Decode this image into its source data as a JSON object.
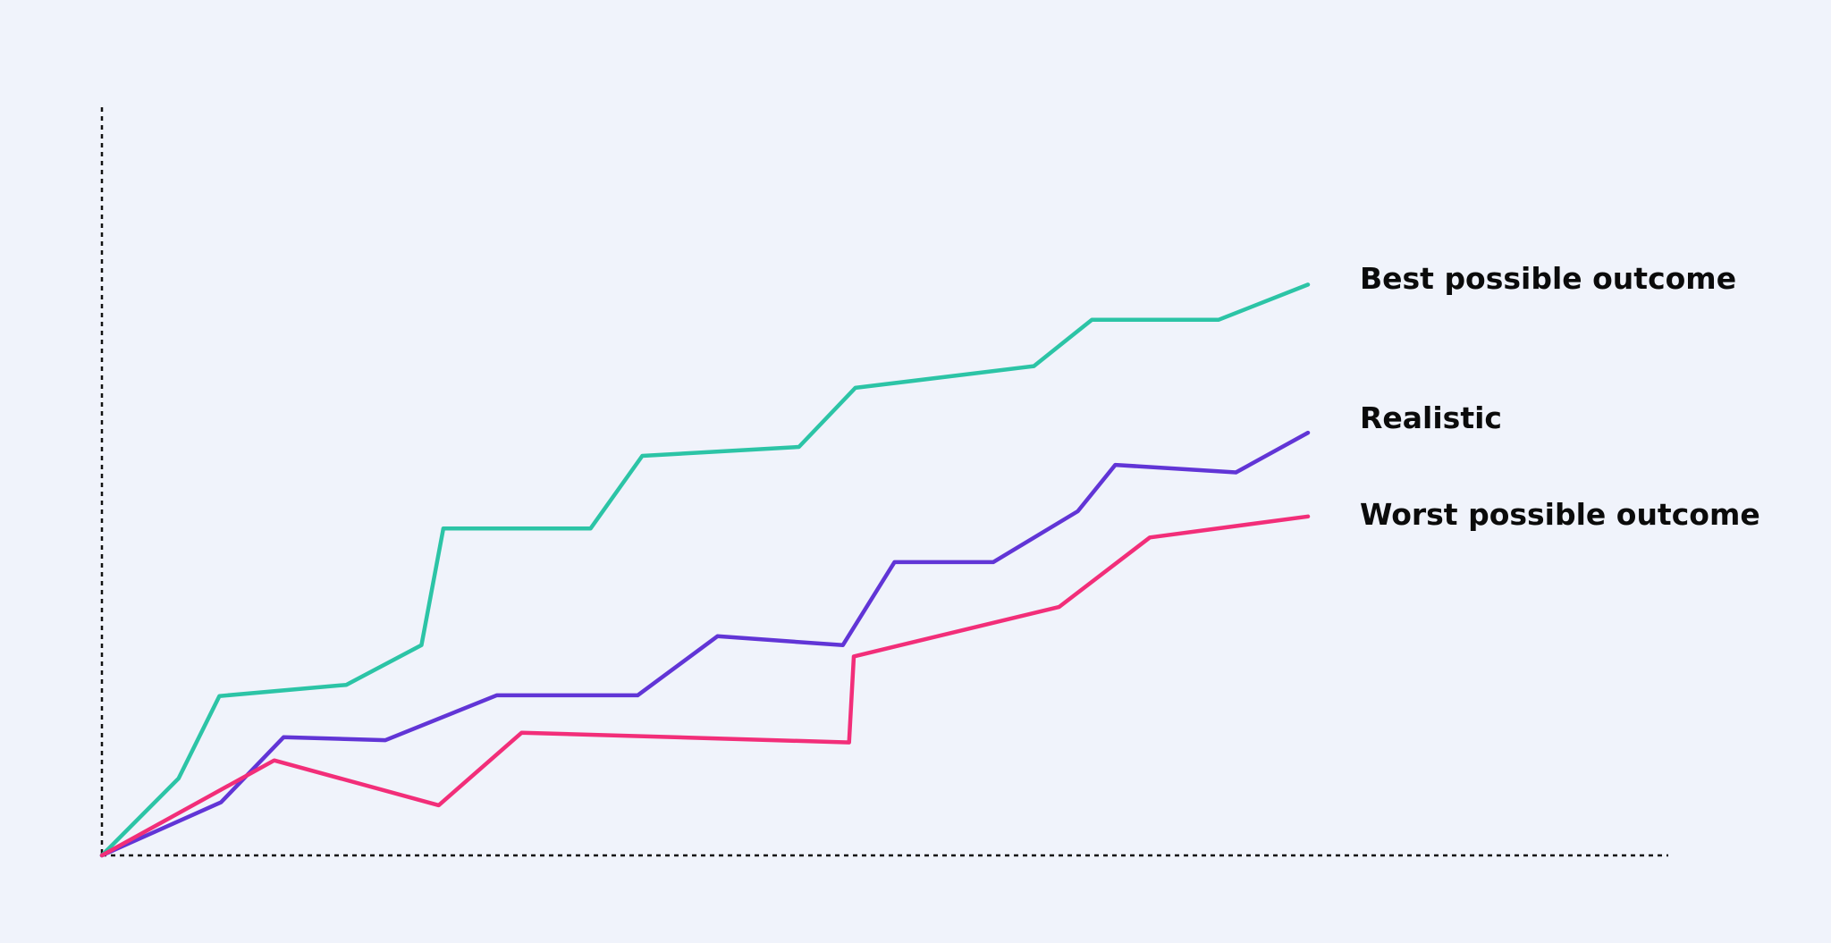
{
  "chart_data": {
    "type": "line",
    "title": "",
    "xlabel": "",
    "ylabel": "",
    "xlim": [
      0,
      100
    ],
    "ylim": [
      0,
      100
    ],
    "grid": false,
    "legend": "right, at line ends",
    "series": [
      {
        "name": "Best possible outcome",
        "color": "#2CC4A6",
        "points": [
          [
            0,
            0
          ],
          [
            4.9,
            10.3
          ],
          [
            7.5,
            21.3
          ],
          [
            15.6,
            22.8
          ],
          [
            20.4,
            28.1
          ],
          [
            21.8,
            43.7
          ],
          [
            31.2,
            43.7
          ],
          [
            34.5,
            53.4
          ],
          [
            44.5,
            54.6
          ],
          [
            48.1,
            62.5
          ],
          [
            59.5,
            65.4
          ],
          [
            63.2,
            71.6
          ],
          [
            71.3,
            71.6
          ],
          [
            77.0,
            76.3
          ]
        ]
      },
      {
        "name": "Realistic",
        "color": "#6135D6",
        "points": [
          [
            0,
            0
          ],
          [
            7.6,
            7.1
          ],
          [
            11.6,
            15.8
          ],
          [
            18.1,
            15.4
          ],
          [
            25.2,
            21.4
          ],
          [
            34.2,
            21.4
          ],
          [
            39.3,
            29.3
          ],
          [
            47.3,
            28.1
          ],
          [
            50.6,
            39.2
          ],
          [
            56.9,
            39.2
          ],
          [
            62.3,
            46.0
          ],
          [
            64.7,
            52.2
          ],
          [
            72.4,
            51.2
          ],
          [
            77.0,
            56.5
          ]
        ]
      },
      {
        "name": "Worst possible outcome",
        "color": "#F22E79",
        "points": [
          [
            0,
            0
          ],
          [
            11.0,
            12.7
          ],
          [
            21.5,
            6.7
          ],
          [
            26.8,
            16.4
          ],
          [
            47.7,
            15.1
          ],
          [
            48.0,
            26.6
          ],
          [
            61.1,
            33.2
          ],
          [
            66.9,
            42.5
          ],
          [
            77.0,
            45.3
          ]
        ]
      }
    ]
  }
}
